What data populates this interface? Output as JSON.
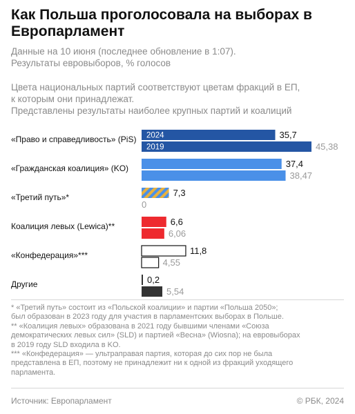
{
  "header": {
    "title": "Как Польша проголосовала на выборах в Европарламент",
    "subtitle_lines": [
      "Данные на 10 июня (последнее обновление в 1:07).",
      "Результаты евровыборов, % голосов"
    ],
    "note_lines": [
      "Цвета национальных партий соответствуют цветам фракций в ЕП,",
      "к которым они принадлежат.",
      "Представлены результаты наиболее крупных партий и коалиций"
    ]
  },
  "chart_data": {
    "type": "bar",
    "orientation": "horizontal",
    "unit": "% голосов",
    "categories": [
      "«Право и справедливость» (PiS)",
      "«Гражданская коалиция» (KO)",
      "«Третий путь»*",
      "Коалиция левых (Lewica)**",
      "«Конфедерация»***",
      "Другие"
    ],
    "series": [
      {
        "name": "2024",
        "values": [
          35.7,
          37.4,
          7.3,
          6.6,
          11.8,
          0.2
        ]
      },
      {
        "name": "2019",
        "values": [
          45.38,
          38.47,
          0,
          6.06,
          4.55,
          5.54
        ]
      }
    ],
    "value_labels_2024": [
      "35,7",
      "37,4",
      "7,3",
      "6,6",
      "11,8",
      "0,2"
    ],
    "value_labels_2019": [
      "45,38",
      "38,47",
      "0",
      "6,06",
      "4,55",
      "5,54"
    ],
    "colors": [
      "#2456a4",
      "#4a90e8",
      "striped:#4a90e8/#e8b13c",
      "#ee2a2f",
      "outline:#111111",
      "#333333"
    ],
    "colors_2019": [
      "#2456a4",
      "#4a90e8",
      "none",
      "#ee2a2f",
      "outline:#111111",
      "#333333"
    ],
    "xlim": [
      0,
      50
    ]
  },
  "footnotes": [
    "* «Третий путь» состоит из «Польской коалиции» и партии «Польша 2050»;",
    "был образован в 2023 году для участия в парламентских выборах в Польше.",
    "** «Коалиция левых» образована в 2021 году бывшими членами «Союза",
    "демократических левых сил» (SLD) и партией «Весна» (Wiosna); на евровыборах",
    "в 2019 году SLD  входила в KO.",
    "*** «Конфедерация» — ультраправая партия, которая до сих пор не была",
    "представлена в ЕП, поэтому не принадлежит ни к одной из фракций уходящего",
    "парламента."
  ],
  "source": "Источник: Европарламент",
  "copyright": "© РБК, 2024"
}
